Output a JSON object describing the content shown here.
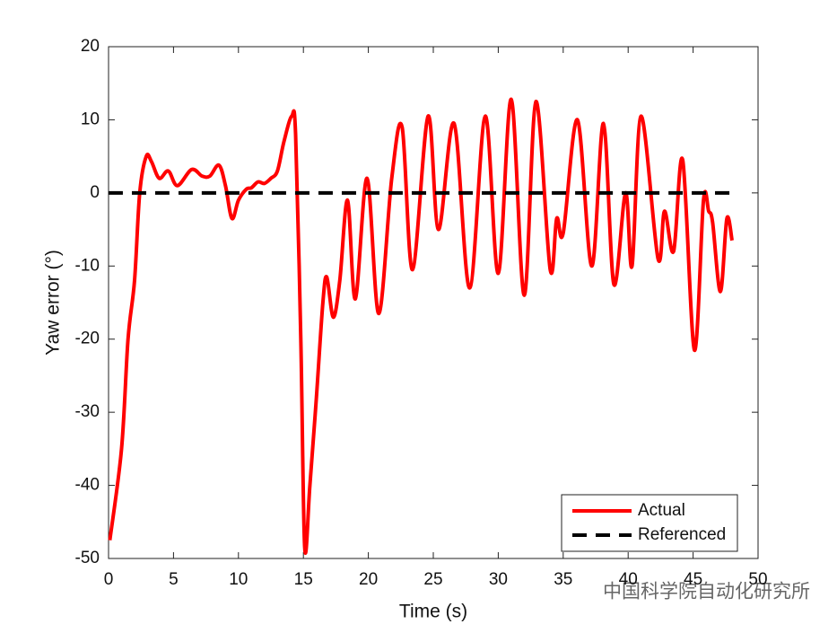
{
  "chart_data": {
    "type": "line",
    "xlabel": "Time (s)",
    "ylabel": "Yaw error (°)",
    "xlim": [
      0,
      50
    ],
    "xticks": [
      0,
      5,
      10,
      15,
      20,
      25,
      30,
      35,
      40,
      45,
      50
    ],
    "ylim": [
      -50,
      20
    ],
    "yticks": [
      -50,
      -40,
      -30,
      -20,
      -10,
      0,
      10,
      20
    ],
    "legend": "lower right",
    "grid": false,
    "series": [
      {
        "name": "Actual",
        "color": "#ff0000",
        "style": "solid",
        "x": [
          0.1,
          1,
          1.5,
          2,
          2.4,
          2.9,
          3.3,
          3.9,
          4.6,
          5.3,
          6.4,
          7.2,
          7.8,
          8.5,
          9,
          9.5,
          10,
          10.6,
          11,
          11.5,
          12,
          12.5,
          13,
          13.5,
          14.1,
          14.4,
          14.8,
          15.1,
          15.5,
          16,
          16.5,
          16.8,
          17.3,
          17.8,
          18.4,
          19,
          19.9,
          20.8,
          21.8,
          22.6,
          23.4,
          24.6,
          25.4,
          26.6,
          27.8,
          29,
          30,
          31,
          32,
          32.9,
          34,
          34.5,
          35,
          36.1,
          37.2,
          38.1,
          38.9,
          39.8,
          40.3,
          41,
          42.3,
          42.8,
          43.5,
          44.2,
          45.1,
          45.8,
          46.2,
          46.5,
          47.1,
          47.6,
          48
        ],
        "values": [
          -47.5,
          -35,
          -20,
          -12,
          0,
          5,
          4.3,
          2,
          3,
          1,
          3.2,
          2.3,
          2.3,
          3.8,
          1,
          -3.5,
          -1,
          0.5,
          0.7,
          1.5,
          1.3,
          2,
          3,
          7,
          10.5,
          8,
          -20,
          -48.5,
          -40,
          -28,
          -15,
          -11.5,
          -17,
          -12,
          -1,
          -14.5,
          2,
          -16.5,
          2,
          9,
          -10.5,
          10.5,
          -5,
          9.5,
          -13,
          10.5,
          -11,
          12.8,
          -14,
          12.5,
          -10.5,
          -3.5,
          -5.5,
          10,
          -10,
          9.5,
          -12.5,
          0,
          -10,
          10.5,
          -9,
          -2.5,
          -8,
          4.5,
          -21.5,
          -1,
          -2.5,
          -4,
          -13.5,
          -3.5,
          -6.5
        ]
      },
      {
        "name": "Referenced",
        "color": "#000000",
        "style": "dashed",
        "x": [
          0,
          48
        ],
        "values": [
          0,
          0
        ]
      }
    ],
    "watermark": "中国科学院自动化研究所"
  }
}
